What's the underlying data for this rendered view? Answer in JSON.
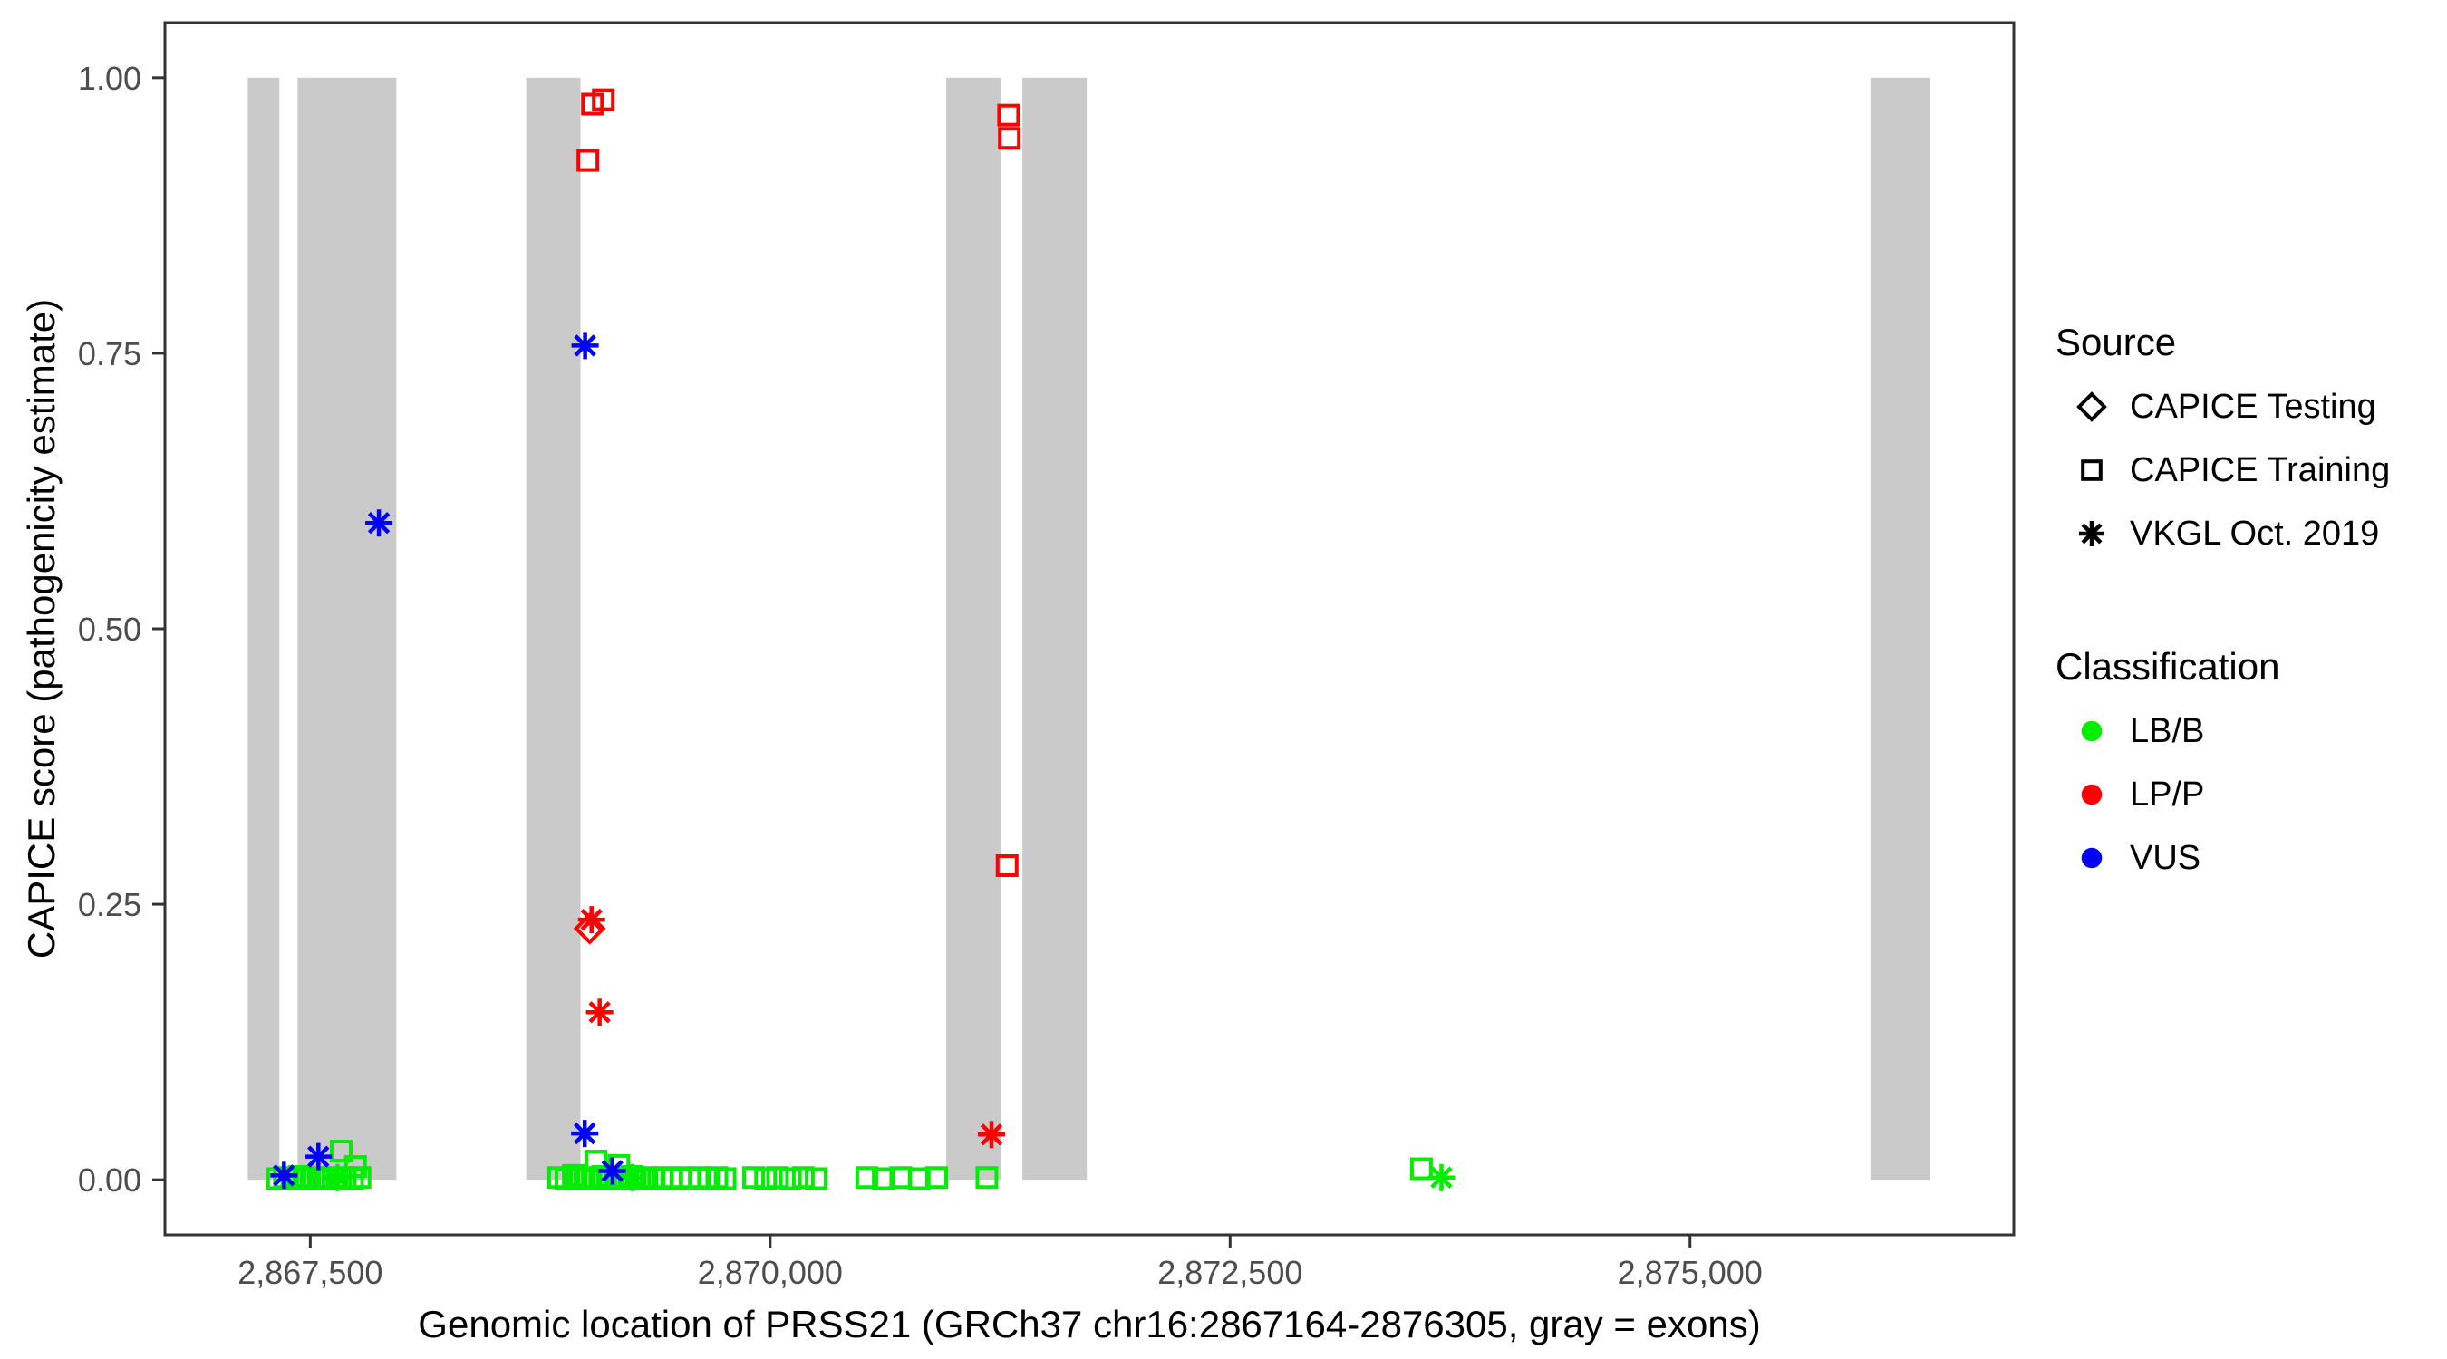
{
  "chart_data": {
    "type": "scatter",
    "title": "",
    "xlabel": "Genomic location of PRSS21 (GRCh37 chr16:2867164-2876305, gray = exons)",
    "ylabel": "CAPICE score (pathogenicity estimate)",
    "xlim": [
      2866710,
      2876760
    ],
    "ylim": [
      -0.05,
      1.05
    ],
    "grid": false,
    "x_ticks": {
      "values": [
        2867500,
        2870000,
        2872500,
        2875000
      ],
      "labels": [
        "2,867,500",
        "2,870,000",
        "2,872,500",
        "2,875,000"
      ]
    },
    "y_ticks": {
      "values": [
        0.0,
        0.25,
        0.5,
        0.75,
        1.0
      ],
      "labels": [
        "0.00",
        "0.25",
        "0.50",
        "0.75",
        "1.00"
      ]
    },
    "exon_color": "#CACACA",
    "exons": [
      [
        2867160,
        2867332
      ],
      [
        2867431,
        2867968
      ],
      [
        2868674,
        2868969
      ],
      [
        2870957,
        2871252
      ],
      [
        2871371,
        2871721
      ],
      [
        2875981,
        2876305
      ]
    ],
    "colors": {
      "LB/B": "#00EE00",
      "LP/P": "#FF0000",
      "VUS": "#0000FF"
    },
    "legend": {
      "source": {
        "title": "Source",
        "items": [
          {
            "shape": "diamond",
            "color": "#000000",
            "label": "CAPICE Testing"
          },
          {
            "shape": "square",
            "color": "#000000",
            "label": "CAPICE Training"
          },
          {
            "shape": "asterisk",
            "color": "#000000",
            "label": "VKGL Oct. 2019"
          }
        ]
      },
      "classification": {
        "title": "Classification",
        "items": [
          {
            "shape": "circle",
            "color": "#00EE00",
            "label": "LB/B"
          },
          {
            "shape": "circle",
            "color": "#FF0000",
            "label": "LP/P"
          },
          {
            "shape": "circle",
            "color": "#0000FF",
            "label": "VUS"
          }
        ]
      }
    },
    "series": [
      {
        "source": "CAPICE Training",
        "classification": "LB/B",
        "shape": "square",
        "color": "#00EE00",
        "points": [
          [
            2867668,
            0.026
          ],
          [
            2867746,
            0.012
          ],
          [
            2867322,
            0.001
          ],
          [
            2867360,
            0.002
          ],
          [
            2867400,
            0.001
          ],
          [
            2867440,
            0.003
          ],
          [
            2867480,
            0.001
          ],
          [
            2867520,
            0.002
          ],
          [
            2867560,
            0.001
          ],
          [
            2867600,
            0.002
          ],
          [
            2867645,
            0.001
          ],
          [
            2867690,
            0.002
          ],
          [
            2867730,
            0.001
          ],
          [
            2867770,
            0.002
          ],
          [
            2869053,
            0.017
          ],
          [
            2869177,
            0.013
          ],
          [
            2868850,
            0.002
          ],
          [
            2868890,
            0.001
          ],
          [
            2868930,
            0.004
          ],
          [
            2868970,
            0.001
          ],
          [
            2869010,
            0.002
          ],
          [
            2869050,
            0.001
          ],
          [
            2869090,
            0.003
          ],
          [
            2869130,
            0.001
          ],
          [
            2869170,
            0.002
          ],
          [
            2869210,
            0.001
          ],
          [
            2869250,
            0.003
          ],
          [
            2869290,
            0.001
          ],
          [
            2869330,
            0.002
          ],
          [
            2869370,
            0.001
          ],
          [
            2869415,
            0.002
          ],
          [
            2869465,
            0.001
          ],
          [
            2869515,
            0.002
          ],
          [
            2869565,
            0.001
          ],
          [
            2869615,
            0.002
          ],
          [
            2869665,
            0.001
          ],
          [
            2869710,
            0.002
          ],
          [
            2869755,
            0.001
          ],
          [
            2869910,
            0.002
          ],
          [
            2869975,
            0.001
          ],
          [
            2870040,
            0.002
          ],
          [
            2870110,
            0.001
          ],
          [
            2870180,
            0.002
          ],
          [
            2870250,
            0.001
          ],
          [
            2870525,
            0.002
          ],
          [
            2870615,
            0.001
          ],
          [
            2870710,
            0.002
          ],
          [
            2870810,
            0.001
          ],
          [
            2870905,
            0.002
          ],
          [
            2871178,
            0.002
          ],
          [
            2873540,
            0.01
          ]
        ]
      },
      {
        "source": "VKGL Oct. 2019",
        "classification": "LB/B",
        "shape": "asterisk",
        "color": "#00EE00",
        "points": [
          [
            2867648,
            0.002
          ],
          [
            2869252,
            0.002
          ],
          [
            2873649,
            0.002
          ]
        ]
      },
      {
        "source": "CAPICE Training",
        "classification": "LP/P",
        "shape": "square",
        "color": "#FF0000",
        "points": [
          [
            2869034,
            0.976
          ],
          [
            2869093,
            0.98
          ],
          [
            2869009,
            0.925
          ],
          [
            2871296,
            0.966
          ],
          [
            2871300,
            0.945
          ],
          [
            2871288,
            0.285
          ]
        ]
      },
      {
        "source": "CAPICE Testing",
        "classification": "LP/P",
        "shape": "diamond",
        "color": "#FF0000",
        "points": [
          [
            2869019,
            0.228
          ]
        ]
      },
      {
        "source": "VKGL Oct. 2019",
        "classification": "LP/P",
        "shape": "asterisk",
        "color": "#FF0000",
        "points": [
          [
            2869029,
            0.236
          ],
          [
            2869073,
            0.152
          ],
          [
            2871203,
            0.041
          ]
        ]
      },
      {
        "source": "VKGL Oct. 2019",
        "classification": "VUS",
        "shape": "asterisk",
        "color": "#0000FF",
        "points": [
          [
            2867357,
            0.004
          ],
          [
            2867544,
            0.021
          ],
          [
            2867873,
            0.596
          ],
          [
            2868994,
            0.757
          ],
          [
            2868992,
            0.042
          ],
          [
            2869142,
            0.008
          ]
        ]
      }
    ]
  }
}
